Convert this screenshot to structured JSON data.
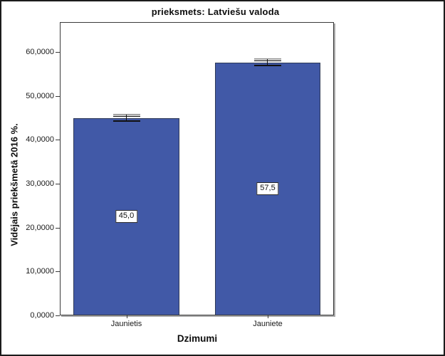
{
  "chart_data": {
    "type": "bar",
    "title": "prieksmets: Latviešu valoda",
    "categories": [
      "Jaunietis",
      "Jauniete"
    ],
    "values": [
      45.0,
      57.5
    ],
    "value_labels": [
      "45,0",
      "57,5"
    ],
    "error_bar_half": 0.7,
    "xlabel": "Dzimumi",
    "ylabel": "Vidējais priekšmetā 2016 %.",
    "ylim": [
      0,
      60
    ],
    "ytick_step": 10,
    "ytick_labels": [
      "0,0000",
      "10,0000",
      "20,0000",
      "30,0000",
      "40,0000",
      "50,0000",
      "60,0000"
    ],
    "grid": false,
    "legend": "none",
    "colors": {
      "bar_fill": "#4159a7",
      "bar_border": "#2f3a57",
      "frame_border": "#3a3a3a",
      "frame_shadow": "#a8a8a8",
      "text": "#0d0d0d"
    }
  }
}
